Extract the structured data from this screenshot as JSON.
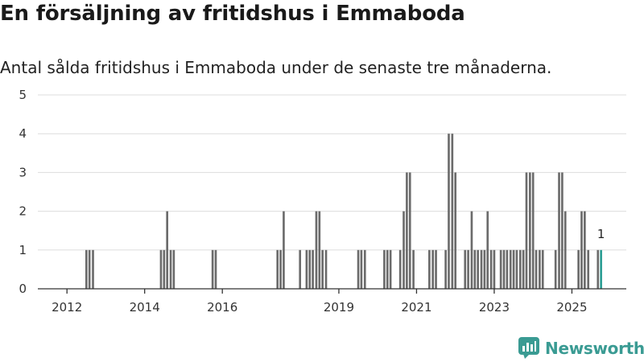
{
  "chart_data": {
    "type": "bar",
    "title": "En försäljning av fritidshus i Emmaboda",
    "subtitle": "Antal sålda fritidshus i Emmaboda under de senaste tre månaderna.",
    "xlabel": "",
    "ylabel": "",
    "ylim": [
      0,
      5
    ],
    "y_ticks": [
      0,
      1,
      2,
      3,
      4,
      5
    ],
    "x_ticks": [
      {
        "label": "2012",
        "x": 2012
      },
      {
        "label": "2014",
        "x": 2014
      },
      {
        "label": "2016",
        "x": 2016
      },
      {
        "label": "2019",
        "x": 2019
      },
      {
        "label": "2021",
        "x": 2021
      },
      {
        "label": "2023",
        "x": 2023
      },
      {
        "label": "2025",
        "x": 2025
      }
    ],
    "x_range": [
      2011.25,
      2026.4
    ],
    "bar_width_years": 0.055,
    "grid": true,
    "colors": {
      "bar": "#6b6b6b",
      "highlight": "#2a9d93",
      "grid": "#dddddd",
      "axis": "#333333"
    },
    "series": [
      {
        "name": "Antal sålda fritidshus",
        "points": [
          {
            "x": 2012.5,
            "y": 1
          },
          {
            "x": 2012.58,
            "y": 1
          },
          {
            "x": 2012.67,
            "y": 1
          },
          {
            "x": 2014.42,
            "y": 1
          },
          {
            "x": 2014.5,
            "y": 1
          },
          {
            "x": 2014.58,
            "y": 2
          },
          {
            "x": 2014.67,
            "y": 1
          },
          {
            "x": 2014.75,
            "y": 1
          },
          {
            "x": 2015.75,
            "y": 1
          },
          {
            "x": 2015.83,
            "y": 1
          },
          {
            "x": 2017.42,
            "y": 1
          },
          {
            "x": 2017.5,
            "y": 1
          },
          {
            "x": 2017.58,
            "y": 2
          },
          {
            "x": 2018.0,
            "y": 1
          },
          {
            "x": 2018.17,
            "y": 1
          },
          {
            "x": 2018.25,
            "y": 1
          },
          {
            "x": 2018.33,
            "y": 1
          },
          {
            "x": 2018.42,
            "y": 2
          },
          {
            "x": 2018.5,
            "y": 2
          },
          {
            "x": 2018.58,
            "y": 1
          },
          {
            "x": 2018.67,
            "y": 1
          },
          {
            "x": 2019.5,
            "y": 1
          },
          {
            "x": 2019.58,
            "y": 1
          },
          {
            "x": 2019.67,
            "y": 1
          },
          {
            "x": 2020.17,
            "y": 1
          },
          {
            "x": 2020.25,
            "y": 1
          },
          {
            "x": 2020.33,
            "y": 1
          },
          {
            "x": 2020.58,
            "y": 1
          },
          {
            "x": 2020.67,
            "y": 2
          },
          {
            "x": 2020.75,
            "y": 3
          },
          {
            "x": 2020.83,
            "y": 3
          },
          {
            "x": 2020.92,
            "y": 1
          },
          {
            "x": 2021.33,
            "y": 1
          },
          {
            "x": 2021.42,
            "y": 1
          },
          {
            "x": 2021.5,
            "y": 1
          },
          {
            "x": 2021.75,
            "y": 1
          },
          {
            "x": 2021.83,
            "y": 4
          },
          {
            "x": 2021.92,
            "y": 4
          },
          {
            "x": 2022.0,
            "y": 3
          },
          {
            "x": 2022.25,
            "y": 1
          },
          {
            "x": 2022.33,
            "y": 1
          },
          {
            "x": 2022.42,
            "y": 2
          },
          {
            "x": 2022.5,
            "y": 1
          },
          {
            "x": 2022.58,
            "y": 1
          },
          {
            "x": 2022.67,
            "y": 1
          },
          {
            "x": 2022.75,
            "y": 1
          },
          {
            "x": 2022.83,
            "y": 2
          },
          {
            "x": 2022.92,
            "y": 1
          },
          {
            "x": 2023.0,
            "y": 1
          },
          {
            "x": 2023.17,
            "y": 1
          },
          {
            "x": 2023.25,
            "y": 1
          },
          {
            "x": 2023.33,
            "y": 1
          },
          {
            "x": 2023.42,
            "y": 1
          },
          {
            "x": 2023.5,
            "y": 1
          },
          {
            "x": 2023.58,
            "y": 1
          },
          {
            "x": 2023.67,
            "y": 1
          },
          {
            "x": 2023.75,
            "y": 1
          },
          {
            "x": 2023.83,
            "y": 3
          },
          {
            "x": 2023.92,
            "y": 3
          },
          {
            "x": 2024.0,
            "y": 3
          },
          {
            "x": 2024.08,
            "y": 1
          },
          {
            "x": 2024.17,
            "y": 1
          },
          {
            "x": 2024.25,
            "y": 1
          },
          {
            "x": 2024.58,
            "y": 1
          },
          {
            "x": 2024.67,
            "y": 3
          },
          {
            "x": 2024.75,
            "y": 3
          },
          {
            "x": 2024.83,
            "y": 2
          },
          {
            "x": 2025.17,
            "y": 1
          },
          {
            "x": 2025.25,
            "y": 2
          },
          {
            "x": 2025.33,
            "y": 2
          },
          {
            "x": 2025.42,
            "y": 1
          },
          {
            "x": 2025.67,
            "y": 1
          },
          {
            "x": 2025.75,
            "y": 1,
            "highlight": true,
            "label": "1"
          }
        ]
      }
    ]
  },
  "brand": {
    "name": "Newsworthy",
    "logo_icon": "newsworthy-logo-icon"
  }
}
